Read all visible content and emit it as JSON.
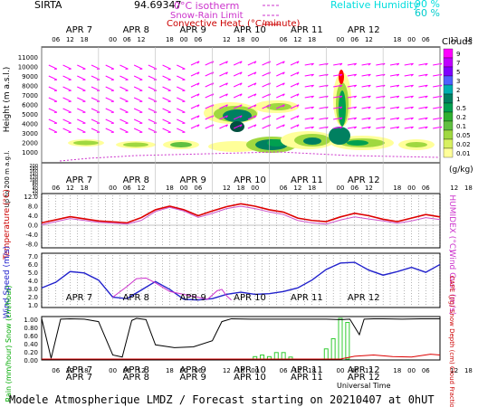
{
  "header": {
    "station": "SIRTA",
    "coords": "94.69347",
    "legend": {
      "isotherm": "0°C isotherm",
      "snow_rain": "Snow-Rain Limit",
      "convective": "Convective Heat. (°C/minute)",
      "rh_title": "Relative Humidity",
      "rh_90": "90 %",
      "rh_60": "60 %"
    },
    "clouds_title": "Clouds",
    "cloud_scale": [
      "9",
      "7",
      "5",
      "3",
      "2",
      "1",
      "0.5",
      "0.2",
      "0.1",
      "0.05",
      "0.02",
      "0.01"
    ],
    "cloud_unit": "(g/kg)",
    "cloud_colors": [
      "#ff00ff",
      "#c000ff",
      "#8000ff",
      "#5060ff",
      "#00b0b0",
      "#008060",
      "#00a050",
      "#30b030",
      "#60c040",
      "#a0d840",
      "#d8f060",
      "#ffff99"
    ]
  },
  "time_axis": {
    "hour_ticks": [
      "06",
      "12",
      "18",
      "00",
      "06",
      "12",
      "18",
      "00",
      "06",
      "12",
      "18",
      "00",
      "06",
      "12",
      "18",
      "00",
      "06",
      "12",
      "18",
      "00",
      "06",
      "12",
      "18"
    ],
    "days": [
      "APR 7",
      "APR 8",
      "APR 9",
      "APR 10",
      "APR 11",
      "APR 12"
    ],
    "bottom_label": "Universal Time"
  },
  "footer": "Modele Atmospherique LMDZ / Forecast starting on 20210407 at 0hUT",
  "chart_data": [
    {
      "type": "heatmap",
      "title": "Clouds",
      "ylabel": "Height (m a.s.l.)",
      "ylabel2": "Up to 200 m a.g.l.",
      "y_ticks": [
        "11000",
        "10000",
        "9000",
        "8000",
        "7000",
        "6000",
        "5000",
        "4000",
        "3000",
        "2000",
        "1000"
      ],
      "y_ticks_low": [
        "200",
        "180",
        "160",
        "140",
        "120",
        "100",
        "80",
        "60",
        "40",
        "20",
        "10"
      ],
      "colorbar_unit": "(g/kg)"
    },
    {
      "type": "line",
      "ylabel": "Temperature (°C)",
      "y2label": "HUMIDEX (°C)",
      "ylim": [
        -8,
        12
      ],
      "y_ticks": [
        "12.0",
        "8.0",
        "4.0",
        "0.0",
        "-4.0",
        "-8.0"
      ],
      "series": [
        {
          "name": "Temperature",
          "color": "#dd0000",
          "x_hours": [
            0,
            12,
            24,
            36,
            42,
            48,
            54,
            60,
            66,
            72,
            78,
            84,
            90,
            96,
            102,
            108,
            114,
            120,
            126,
            132,
            138,
            144,
            150,
            156,
            162,
            168
          ],
          "values": [
            1.0,
            3.6,
            1.8,
            1.0,
            3.2,
            6.5,
            8.0,
            6.5,
            4.0,
            6.0,
            7.8,
            9.0,
            8.0,
            6.5,
            5.5,
            3.0,
            2.0,
            1.5,
            3.5,
            5.0,
            4.0,
            2.5,
            1.5,
            3.0,
            4.5,
            3.5
          ]
        },
        {
          "name": "HUMIDEX",
          "color": "#cc55cc",
          "x_hours": [
            0,
            12,
            24,
            36,
            42,
            48,
            54,
            60,
            66,
            72,
            78,
            84,
            90,
            96,
            102,
            108,
            114,
            120,
            126,
            132,
            138,
            144,
            150,
            156,
            162,
            168
          ],
          "values": [
            0.2,
            2.8,
            1.2,
            0.5,
            2.0,
            5.8,
            7.5,
            6.0,
            3.3,
            5.0,
            7.0,
            8.0,
            7.0,
            5.6,
            4.5,
            2.0,
            1.0,
            0.5,
            2.2,
            3.5,
            2.6,
            1.8,
            0.8,
            1.8,
            3.2,
            2.4
          ]
        }
      ]
    },
    {
      "type": "line",
      "ylabel": "Wind Speed (m/s)",
      "y2label": "Wind Gust (m/s)",
      "ylim": [
        0,
        7
      ],
      "y_ticks": [
        "7.0",
        "6.0",
        "5.0",
        "4.0",
        "3.0",
        "2.0",
        "1.0"
      ],
      "series": [
        {
          "name": "Wind Speed",
          "color": "#2222cc",
          "x_hours": [
            0,
            6,
            12,
            18,
            24,
            30,
            36,
            42,
            48,
            54,
            60,
            66,
            72,
            78,
            84,
            90,
            96,
            102,
            108,
            114,
            120,
            126,
            132,
            138,
            144,
            150,
            156,
            162,
            168
          ],
          "values": [
            2.5,
            3.3,
            4.8,
            4.6,
            3.6,
            1.2,
            1.0,
            2.2,
            3.4,
            2.3,
            0.9,
            0.8,
            1.0,
            1.6,
            1.9,
            1.6,
            1.7,
            2.0,
            2.5,
            3.6,
            5.1,
            6.0,
            6.1,
            5.0,
            4.3,
            4.8,
            5.4,
            4.7,
            5.8
          ]
        },
        {
          "name": "Wind Gust",
          "color": "#cc33cc",
          "x_hours": [
            30,
            36,
            40,
            44,
            48,
            54,
            70,
            74,
            76,
            78,
            80
          ],
          "values": [
            1.2,
            2.7,
            3.8,
            3.9,
            3.2,
            2.0,
            0.9,
            2.1,
            2.3,
            1.4,
            0.8
          ]
        }
      ]
    },
    {
      "type": "bar",
      "ylabel": "Rain (mm/hour) Snow (cm/hour)",
      "y2label": "CAPE (J/g) Snow Depth (cm) Cloud Fraction",
      "ylim": [
        0,
        1.0
      ],
      "y_ticks": [
        "1.00",
        "0.80",
        "0.60",
        "0.40",
        "0.20",
        "0.00"
      ],
      "rain_bars": [
        {
          "x_hours": 90,
          "value": 0.06
        },
        {
          "x_hours": 93,
          "value": 0.1
        },
        {
          "x_hours": 96,
          "value": 0.06
        },
        {
          "x_hours": 99,
          "value": 0.16
        },
        {
          "x_hours": 102,
          "value": 0.16
        },
        {
          "x_hours": 105,
          "value": 0.05
        },
        {
          "x_hours": 120,
          "value": 0.25
        },
        {
          "x_hours": 123,
          "value": 0.5
        },
        {
          "x_hours": 126,
          "value": 1.0
        },
        {
          "x_hours": 129,
          "value": 0.9
        }
      ],
      "series": [
        {
          "name": "Cloud Fraction",
          "color": "#000000",
          "x_hours": [
            0,
            4,
            8,
            12,
            18,
            24,
            30,
            34,
            38,
            40,
            44,
            48,
            56,
            64,
            72,
            76,
            80,
            88,
            96,
            104,
            112,
            120,
            126,
            130,
            134,
            136,
            140,
            144,
            152,
            160,
            168
          ],
          "values": [
            1.0,
            0.02,
            0.98,
            0.99,
            0.98,
            0.92,
            0.1,
            0.05,
            0.95,
            1.0,
            0.97,
            0.35,
            0.28,
            0.3,
            0.45,
            0.92,
            0.99,
            0.98,
            0.98,
            0.98,
            0.98,
            0.98,
            0.97,
            0.98,
            0.6,
            0.98,
            0.99,
            0.99,
            0.98,
            0.99,
            0.99
          ]
        },
        {
          "name": "CAPE",
          "color": "#dd0000",
          "x_hours": [
            0,
            110,
            126,
            132,
            140,
            148,
            156,
            164,
            168
          ],
          "values": [
            0,
            0,
            0.0,
            0.07,
            0.1,
            0.06,
            0.05,
            0.12,
            0.1
          ]
        }
      ]
    }
  ]
}
